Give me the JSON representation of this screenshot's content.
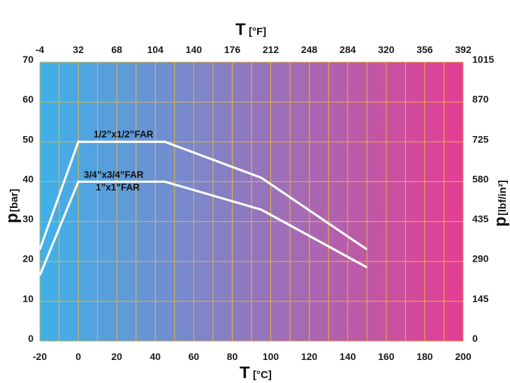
{
  "chart_data": {
    "type": "line",
    "x_bottom": {
      "symbol": "T",
      "unit": "[°C]",
      "range": [
        -20,
        200
      ],
      "ticks": [
        "-20",
        "0",
        "20",
        "40",
        "60",
        "80",
        "100",
        "120",
        "140",
        "160",
        "180",
        "200"
      ]
    },
    "x_top": {
      "symbol": "T",
      "unit": "[°F]",
      "range": [
        -4,
        392
      ],
      "ticks": [
        "-4",
        "32",
        "68",
        "104",
        "140",
        "176",
        "212",
        "248",
        "284",
        "320",
        "356",
        "392"
      ]
    },
    "y_left": {
      "symbol": "p",
      "unit": "[bar]",
      "range": [
        0,
        70
      ],
      "ticks": [
        "0",
        "10",
        "20",
        "30",
        "40",
        "50",
        "60",
        "70"
      ]
    },
    "y_right": {
      "symbol": "p",
      "unit": "[lbf/in²]",
      "range": [
        0,
        1015
      ],
      "ticks": [
        "0",
        "145",
        "290",
        "435",
        "580",
        "725",
        "870",
        "1015"
      ]
    },
    "grid": true,
    "background_gradient": [
      "#3eb1ea",
      "#e53d92"
    ],
    "grid_color": "#e8b832",
    "line_color": "#ffffff",
    "series": [
      {
        "name": "1/2”x1/2”FAR",
        "x": [
          -20,
          0,
          45,
          95,
          150
        ],
        "y": [
          23,
          50,
          50,
          41,
          23
        ]
      },
      {
        "name": "3/4”x3/4”FAR",
        "name2": "1”x1”FAR",
        "x": [
          -20,
          0,
          45,
          95,
          150
        ],
        "y": [
          16.5,
          40,
          40,
          33,
          18.5
        ]
      }
    ]
  }
}
